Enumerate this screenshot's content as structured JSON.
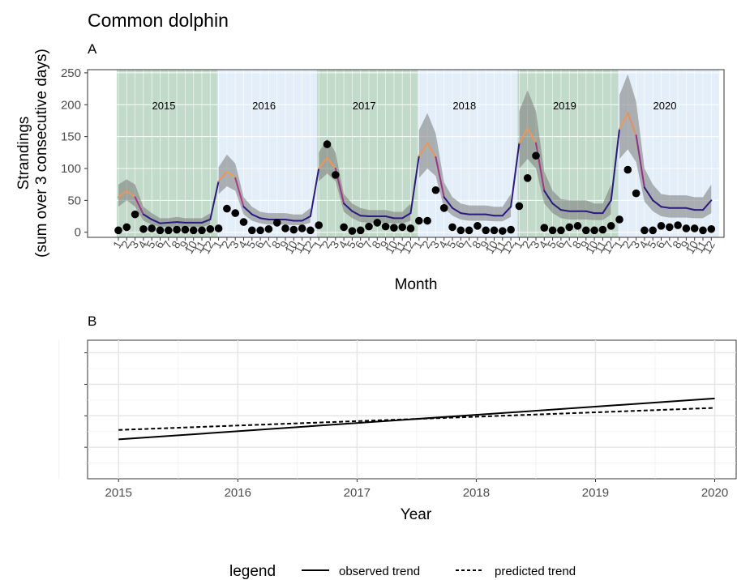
{
  "title": "Common dolphin",
  "chart_data": [
    {
      "panel": "A",
      "type": "line",
      "x_unit": "month",
      "ylabel": "Strandings\n(sum over 3 consecutive days)",
      "xlabel": "Month",
      "ylim": [
        -8,
        255
      ],
      "yticks": [
        0,
        50,
        100,
        150,
        200,
        250
      ],
      "xticks": [
        "1",
        "2",
        "3",
        "4",
        "5",
        "6",
        "7",
        "8",
        "9",
        "10",
        "11",
        "12"
      ],
      "grid": true,
      "year_bands": [
        {
          "year": "2015",
          "color": "#aecdb8"
        },
        {
          "year": "2016",
          "color": "#d9e8f6"
        },
        {
          "year": "2017",
          "color": "#aecdb8"
        },
        {
          "year": "2018",
          "color": "#d9e8f6"
        },
        {
          "year": "2019",
          "color": "#aecdb8"
        },
        {
          "year": "2020",
          "color": "#d9e8f6"
        }
      ],
      "series": [
        {
          "role": "predicted",
          "values": [
            [
              55,
              65,
              55,
              28,
              20,
              14,
              15,
              16,
              15,
              15,
              15,
              20
            ],
            [
              80,
              95,
              85,
              40,
              28,
              22,
              20,
              20,
              20,
              18,
              18,
              25
            ],
            [
              100,
              117,
              100,
              45,
              33,
              26,
              25,
              25,
              25,
              22,
              22,
              30
            ],
            [
              120,
              140,
              118,
              55,
              38,
              30,
              28,
              28,
              28,
              26,
              26,
              40
            ],
            [
              140,
              163,
              140,
              65,
              45,
              35,
              33,
              33,
              33,
              30,
              30,
              50
            ],
            [
              162,
              187,
              152,
              70,
              50,
              40,
              38,
              38,
              38,
              35,
              35,
              50
            ]
          ],
          "ci_lower": [
            [
              40,
              50,
              40,
              18,
              12,
              8,
              8,
              8,
              8,
              8,
              8,
              12
            ],
            [
              60,
              72,
              65,
              28,
              18,
              14,
              12,
              12,
              12,
              11,
              11,
              15
            ],
            [
              80,
              92,
              80,
              32,
              22,
              16,
              15,
              15,
              15,
              14,
              14,
              18
            ],
            [
              85,
              100,
              88,
              38,
              26,
              20,
              18,
              18,
              18,
              17,
              17,
              24
            ],
            [
              100,
              115,
              100,
              45,
              30,
              22,
              20,
              20,
              20,
              19,
              19,
              28
            ],
            [
              115,
              130,
              110,
              48,
              33,
              25,
              23,
              23,
              23,
              22,
              22,
              30
            ]
          ],
          "ci_upper": [
            [
              75,
              83,
              75,
              40,
              30,
              22,
              22,
              24,
              22,
              22,
              22,
              30
            ],
            [
              102,
              122,
              108,
              55,
              40,
              32,
              30,
              30,
              30,
              28,
              28,
              38
            ],
            [
              125,
              147,
              125,
              60,
              45,
              38,
              35,
              35,
              35,
              32,
              32,
              45
            ],
            [
              160,
              187,
              155,
              78,
              55,
              45,
              42,
              42,
              42,
              40,
              40,
              60
            ],
            [
              190,
              223,
              190,
              95,
              65,
              52,
              50,
              50,
              50,
              45,
              45,
              75
            ],
            [
              215,
              248,
              205,
              100,
              75,
              60,
              58,
              58,
              58,
              55,
              55,
              75
            ]
          ],
          "color_scale": [
            "#2b1a80",
            "#c43d84",
            "#f7b34a"
          ]
        },
        {
          "role": "observed",
          "values": [
            [
              3,
              8,
              28,
              5,
              6,
              3,
              3,
              4,
              4,
              3,
              3,
              5
            ],
            [
              6,
              37,
              30,
              16,
              3,
              3,
              5,
              15,
              6,
              4,
              6,
              3
            ],
            [
              11,
              138,
              90,
              8,
              2,
              3,
              9,
              15,
              9,
              7,
              8,
              6
            ],
            [
              18,
              18,
              66,
              38,
              8,
              3,
              3,
              10,
              3,
              3,
              2,
              4
            ],
            [
              41,
              85,
              120,
              7,
              3,
              3,
              8,
              10,
              3,
              3,
              4,
              10
            ],
            [
              20,
              98,
              61,
              3,
              3,
              10,
              8,
              11,
              6,
              6,
              3,
              5
            ]
          ]
        }
      ],
      "annotations": [
        "2015",
        "2016",
        "2017",
        "2018",
        "2019",
        "2020"
      ]
    },
    {
      "panel": "B",
      "type": "line",
      "xlabel": "Year",
      "x": [
        2015,
        2020
      ],
      "xticks": [
        2015,
        2016,
        2017,
        2018,
        2019,
        2020
      ],
      "xlim": [
        2014.74,
        2020.18
      ],
      "ylim": [
        0,
        4.4
      ],
      "grid": true,
      "series": [
        {
          "name": "observed trend",
          "style": "solid",
          "values": [
            1.25,
            2.55
          ]
        },
        {
          "name": "predicted trend",
          "style": "dashed",
          "values": [
            1.55,
            2.25
          ]
        }
      ],
      "legend": {
        "title": "legend",
        "placement": "bottom"
      }
    }
  ]
}
